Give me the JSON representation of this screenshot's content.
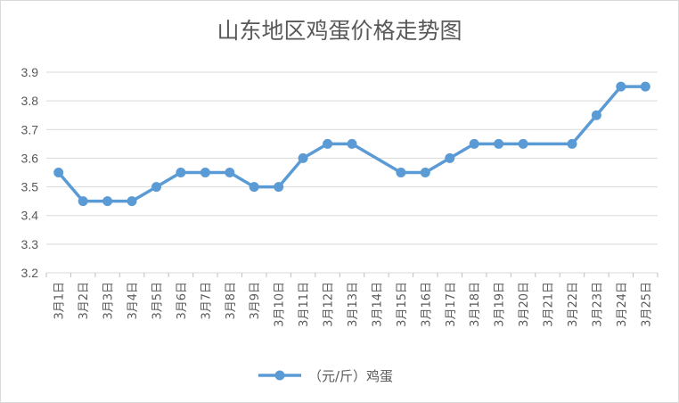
{
  "chart_data": {
    "type": "line",
    "title": "山东地区鸡蛋价格走势图",
    "xlabel": "",
    "ylabel": "",
    "ylim": [
      3.2,
      3.9
    ],
    "yticks": [
      "3.2",
      "3.3",
      "3.4",
      "3.5",
      "3.6",
      "3.7",
      "3.8",
      "3.9"
    ],
    "grid": true,
    "legend_position": "bottom",
    "categories": [
      "3月1日",
      "3月2日",
      "3月3日",
      "3月4日",
      "3月5日",
      "3月6日",
      "3月7日",
      "3月8日",
      "3月9日",
      "3月10日",
      "3月11日",
      "3月12日",
      "3月13日",
      "3月14日",
      "3月15日",
      "3月16日",
      "3月17日",
      "3月18日",
      "3月19日",
      "3月20日",
      "3月21日",
      "3月22日",
      "3月23日",
      "3月24日",
      "3月25日"
    ],
    "series": [
      {
        "name": "（元/斤）鸡蛋",
        "color": "#5b9bd5",
        "values": [
          3.55,
          3.45,
          3.45,
          3.45,
          3.5,
          3.55,
          3.55,
          3.55,
          3.5,
          3.5,
          3.6,
          3.65,
          3.65,
          null,
          3.55,
          3.55,
          3.6,
          3.65,
          3.65,
          3.65,
          null,
          3.65,
          3.75,
          3.85,
          3.85
        ]
      }
    ]
  }
}
